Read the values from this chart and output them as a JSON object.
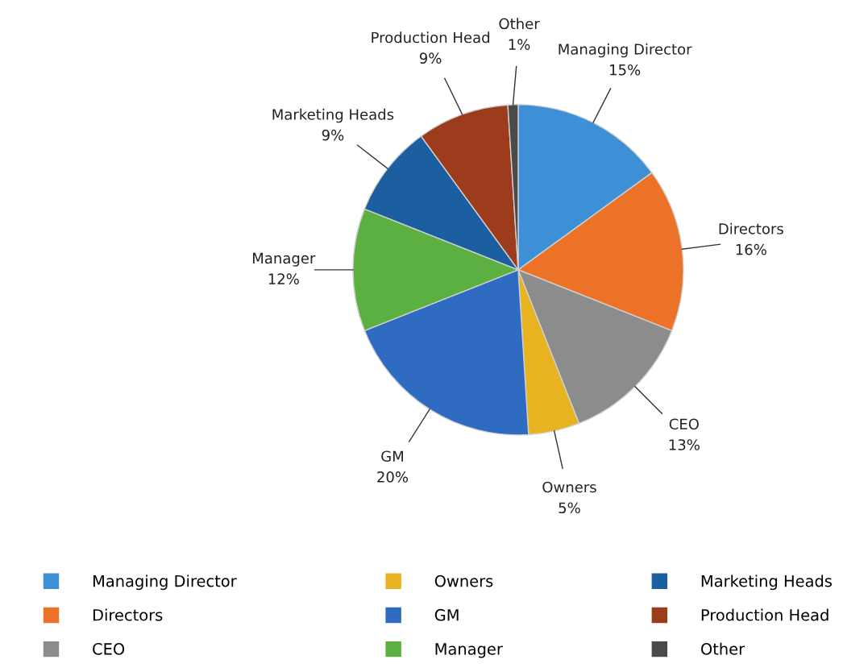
{
  "chart_data": {
    "type": "pie",
    "categories": [
      "Managing Director",
      "Directors",
      "CEO",
      "Owners",
      "GM",
      "Manager",
      "Marketing Heads",
      "Production Head",
      "Other"
    ],
    "values": [
      15,
      16,
      13,
      5,
      20,
      12,
      9,
      9,
      1
    ],
    "colors": [
      "#3d8fd6",
      "#ec7228",
      "#8c8c8c",
      "#e8b321",
      "#2f6bc0",
      "#5bb041",
      "#1c5fa0",
      "#9c3c1c",
      "#4a4a4a"
    ],
    "value_labels": [
      "15%",
      "16%",
      "13%",
      "5%",
      "20%",
      "12%",
      "9%",
      "9%",
      "1%"
    ],
    "legend": "bottom"
  }
}
